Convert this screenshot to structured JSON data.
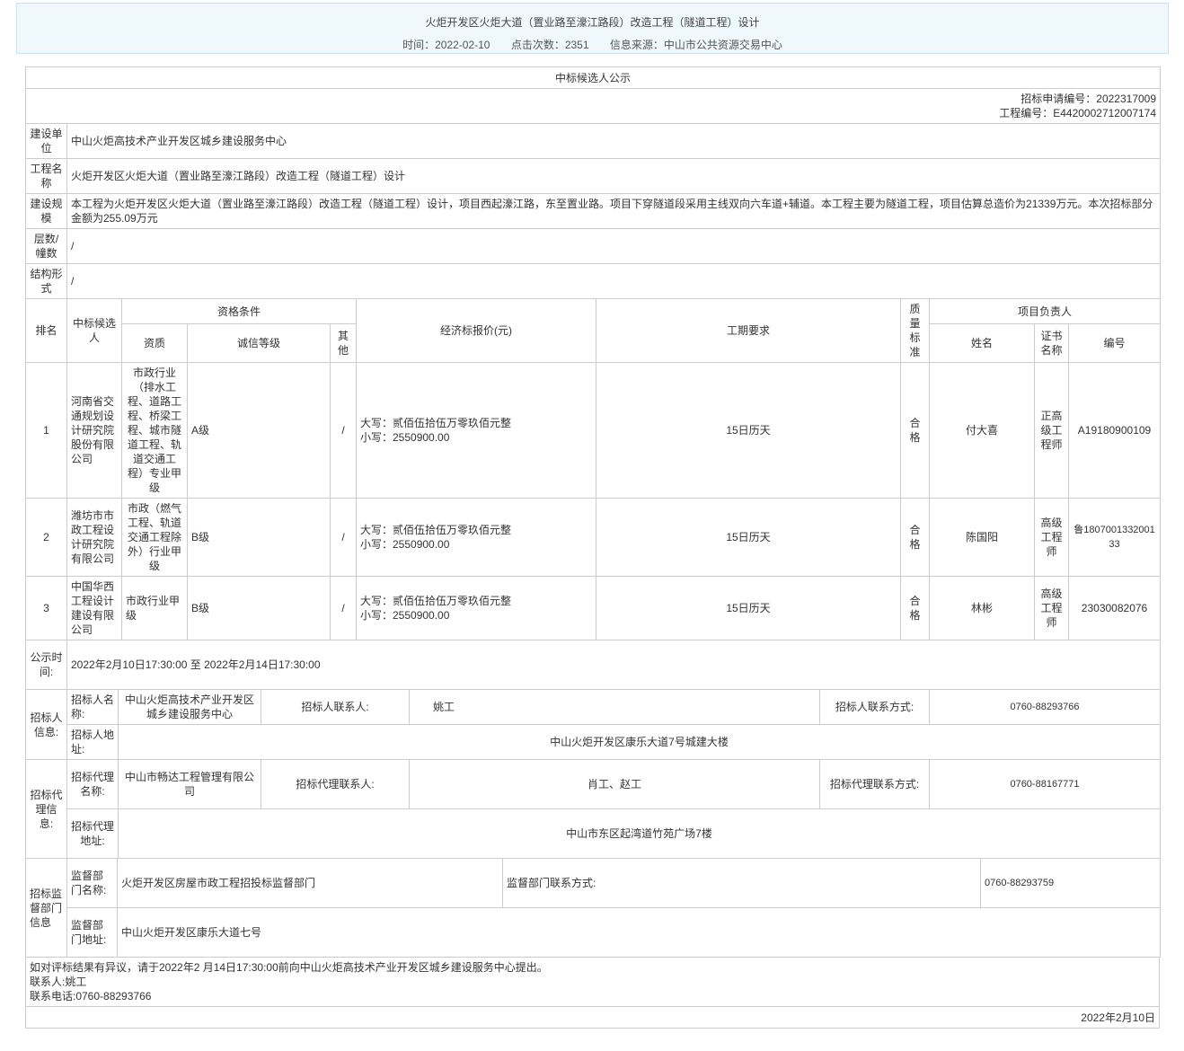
{
  "banner": {
    "title": "火炬开发区火炬大道（置业路至濠江路段）改造工程（隧道工程）设计",
    "time": "时间：2022-02-10",
    "clicks": "点击次数：2351",
    "source": "信息来源：中山市公共资源交易中心"
  },
  "notice": {
    "heading": "中标候选人公示",
    "apply_no": "招标申请编号：2022317009",
    "project_no": "工程编号：E4420002712007174",
    "info": [
      {
        "label": "建设单位",
        "value": "中山火炬高技术产业开发区城乡建设服务中心"
      },
      {
        "label": "工程名称",
        "value": "火炬开发区火炬大道（置业路至濠江路段）改造工程（隧道工程）设计"
      },
      {
        "label": "建设规模",
        "value": "本工程为火炬开发区火炬大道（置业路至濠江路段）改造工程（隧道工程）设计，项目西起濠江路，东至置业路。项目下穿隧道段采用主线双向六车道+辅道。本工程主要为隧道工程，项目估算总造价为21339万元。本次招标部分金额为255.09万元"
      },
      {
        "label": "层数/幢数",
        "value": "/"
      },
      {
        "label": "结构形式",
        "value": "/"
      }
    ],
    "headers": {
      "rank": "排名",
      "candidate": "中标候选人",
      "qual": "资格条件",
      "qual_level": "资质",
      "credit": "诚信等级",
      "other": "其他",
      "price": "经济标报价(元)",
      "period": "工期要求",
      "quality": "质量标准",
      "manager": "项目负责人",
      "name": "姓名",
      "cert": "证书名称",
      "cert_no": "编号"
    },
    "rows": [
      {
        "rank": "1",
        "candidate": "河南省交通规划设计研究院股份有限公司",
        "qual": "市政行业（排水工程、道路工程、桥梁工程、城市隧道工程、轨道交通工程）专业甲级",
        "credit": "A级",
        "other": "/",
        "price_big": "大写：贰佰伍拾伍万零玖佰元整",
        "price_small": "小写：2550900.00",
        "period": "15日历天",
        "quality": "合格",
        "name": "付大喜",
        "cert": "正高级工程师",
        "cert_no": "A19180900109"
      },
      {
        "rank": "2",
        "candidate": "潍坊市市政工程设计研究院有限公司",
        "qual": "市政（燃气工程、轨道交通工程除外）行业甲级",
        "credit": "B级",
        "other": "/",
        "price_big": "大写：贰佰伍拾伍万零玖佰元整",
        "price_small": "小写：2550900.00",
        "period": "15日历天",
        "quality": "合格",
        "name": "陈国阳",
        "cert": "高级工程师",
        "cert_no": "鲁180700133200133"
      },
      {
        "rank": "3",
        "candidate": "中国华西工程设计建设有限公司",
        "qual": "市政行业甲级",
        "credit": "B级",
        "other": "/",
        "price_big": "大写：贰佰伍拾伍万零玖佰元整",
        "price_small": "小写：2550900.00",
        "period": "15日历天",
        "quality": "合格",
        "name": "林彬",
        "cert": "高级工程师",
        "cert_no": "23030082076"
      }
    ],
    "publicity": {
      "label": "公示时间:",
      "value": "2022年2月10日17:30:00 至 2022年2月14日17:30:00"
    },
    "tenderer": {
      "label": "招标人信息:",
      "name_label": "招标人名称:",
      "name": "中山火炬高技术产业开发区城乡建设服务中心",
      "contact_label": "招标人联系人:",
      "contact": "姚工",
      "phone_label": "招标人联系方式:",
      "phone": "0760-88293766",
      "addr_label": "招标人地址:",
      "addr": "中山火炬开发区康乐大道7号城建大楼"
    },
    "agent": {
      "label": "招标代理信息:",
      "name_label": "招标代理名称:",
      "name": "中山市畅达工程管理有限公司",
      "contact_label": "招标代理联系人:",
      "contact": "肖工、赵工",
      "phone_label": "招标代理联系方式:",
      "phone": "0760-88167771",
      "addr_label": "招标代理地址:",
      "addr": "中山市东区起湾道竹苑广场7楼"
    },
    "supervisor": {
      "label": "招标监督部门信息",
      "name_label": "监督部门名称:",
      "name": "火炬开发区房屋市政工程招投标监督部门",
      "phone_label": "监督部门联系方式:",
      "phone": "0760-88293759",
      "addr_label": "监督部门地址:",
      "addr": "中山火炬开发区康乐大道七号"
    },
    "objection": "如对评标结果有异议，请于2022年2 月14日17:30:00前向中山火炬高技术产业开发区城乡建设服务中心提出。",
    "contact": "联系人:姚工",
    "phone": "联系电话:0760-88293766",
    "date": "2022年2月10日"
  }
}
